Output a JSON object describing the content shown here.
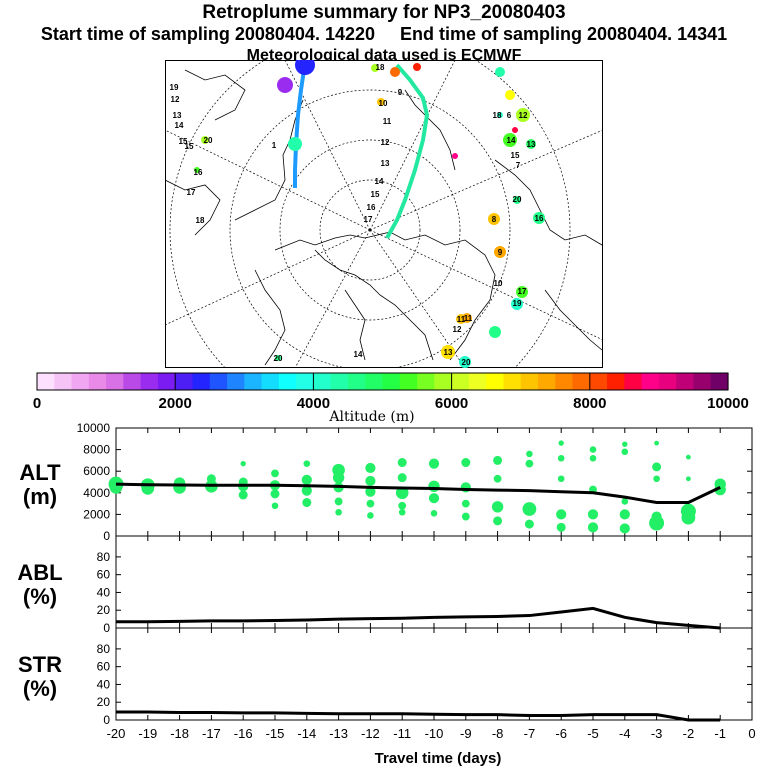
{
  "header": {
    "title": "Retroplume summary for NP3_20080403",
    "start_label": "Start time of sampling 20080404. 14220",
    "end_label": "End time of sampling 20080404. 14341",
    "met_label": "Meteorological data used is ECMWF"
  },
  "colors": {
    "trajectory_west": "#1e9bff",
    "trajectory_east": "#22e8a0",
    "cluster_green": "#22ee66",
    "axis": "#000000"
  },
  "colorbar": {
    "label": "Altitude (m)",
    "ticks": [
      "0",
      "2000",
      "4000",
      "6000",
      "8000",
      "10000"
    ],
    "min": 0,
    "max": 10000,
    "colors": [
      "#fde0fd",
      "#f6c3f6",
      "#f0a6f0",
      "#e98ae9",
      "#d870e6",
      "#b94ae8",
      "#9a2cf0",
      "#7a1cf2",
      "#4e1ff5",
      "#2424ff",
      "#1e55ff",
      "#1e84ff",
      "#1ab4ff",
      "#14dcff",
      "#10ffff",
      "#22ffe6",
      "#22ffcc",
      "#22ffaa",
      "#22ff88",
      "#22ff66",
      "#22ff44",
      "#44ff22",
      "#77ff22",
      "#aaff22",
      "#ccff22",
      "#eeff22",
      "#ffff00",
      "#ffe000",
      "#ffc400",
      "#ffa800",
      "#ff8800",
      "#ff6a00",
      "#ff4800",
      "#ff2000",
      "#ff0044",
      "#ff0088",
      "#e8007f",
      "#c00077",
      "#98006e",
      "#700068"
    ]
  },
  "map_labels": {
    "west_days": [
      "12",
      "13",
      "14",
      "15",
      "15",
      "16",
      "17",
      "18",
      "19",
      "20",
      "1"
    ],
    "east_track_days": [
      "9",
      "10",
      "11",
      "12",
      "13",
      "14",
      "15",
      "16",
      "17",
      "18"
    ],
    "east_cluster_days": [
      "6",
      "7",
      "8",
      "9",
      "10",
      "11",
      "12",
      "13",
      "14",
      "15",
      "16",
      "17",
      "18",
      "19",
      "20"
    ],
    "south_days": [
      "11",
      "12",
      "13",
      "14",
      "20",
      "20"
    ]
  },
  "chart_data": [
    {
      "type": "scatter",
      "panel_label": "ALT\n(m)",
      "ylabel_line1": "ALT",
      "ylabel_line2": "(m)",
      "xlabel": "Travel time (days)",
      "xlim": [
        -20,
        0
      ],
      "ylim": [
        0,
        10000
      ],
      "yticks": [
        "0",
        "2000",
        "4000",
        "6000",
        "8000",
        "10000"
      ],
      "mean_line": {
        "x": [
          -20,
          -19,
          -18,
          -17,
          -16,
          -15,
          -14,
          -13,
          -12,
          -11,
          -10,
          -9,
          -8,
          -7,
          -6,
          -5,
          -4,
          -3,
          -2,
          -1
        ],
        "y": [
          4800,
          4750,
          4720,
          4700,
          4700,
          4700,
          4650,
          4600,
          4500,
          4450,
          4400,
          4300,
          4250,
          4200,
          4100,
          4000,
          3600,
          3100,
          3100,
          4500
        ]
      },
      "clusters": [
        {
          "day": -20,
          "alt": 4800,
          "mass": 1.0
        },
        {
          "day": -20,
          "alt": 4500,
          "mass": 0.8
        },
        {
          "day": -19,
          "alt": 4700,
          "mass": 0.9
        },
        {
          "day": -19,
          "alt": 4400,
          "mass": 0.8
        },
        {
          "day": -18,
          "alt": 4900,
          "mass": 0.7
        },
        {
          "day": -18,
          "alt": 4500,
          "mass": 0.8
        },
        {
          "day": -17,
          "alt": 5300,
          "mass": 0.5
        },
        {
          "day": -17,
          "alt": 4600,
          "mass": 0.8
        },
        {
          "day": -16,
          "alt": 6700,
          "mass": 0.2
        },
        {
          "day": -16,
          "alt": 5000,
          "mass": 0.5
        },
        {
          "day": -16,
          "alt": 4600,
          "mass": 0.6
        },
        {
          "day": -16,
          "alt": 3800,
          "mass": 0.5
        },
        {
          "day": -15,
          "alt": 5800,
          "mass": 0.4
        },
        {
          "day": -15,
          "alt": 4700,
          "mass": 0.6
        },
        {
          "day": -15,
          "alt": 3900,
          "mass": 0.5
        },
        {
          "day": -15,
          "alt": 2800,
          "mass": 0.3
        },
        {
          "day": -14,
          "alt": 6700,
          "mass": 0.3
        },
        {
          "day": -14,
          "alt": 5200,
          "mass": 0.6
        },
        {
          "day": -14,
          "alt": 4200,
          "mass": 0.6
        },
        {
          "day": -14,
          "alt": 3100,
          "mass": 0.5
        },
        {
          "day": -13,
          "alt": 6100,
          "mass": 0.8
        },
        {
          "day": -13,
          "alt": 5400,
          "mass": 0.7
        },
        {
          "day": -13,
          "alt": 4500,
          "mass": 0.6
        },
        {
          "day": -13,
          "alt": 3200,
          "mass": 0.4
        },
        {
          "day": -13,
          "alt": 2200,
          "mass": 0.3
        },
        {
          "day": -12,
          "alt": 6300,
          "mass": 0.6
        },
        {
          "day": -12,
          "alt": 5100,
          "mass": 0.6
        },
        {
          "day": -12,
          "alt": 4100,
          "mass": 0.6
        },
        {
          "day": -12,
          "alt": 3000,
          "mass": 0.4
        },
        {
          "day": -12,
          "alt": 1900,
          "mass": 0.3
        },
        {
          "day": -11,
          "alt": 6800,
          "mass": 0.5
        },
        {
          "day": -11,
          "alt": 5400,
          "mass": 0.5
        },
        {
          "day": -11,
          "alt": 4000,
          "mass": 0.8
        },
        {
          "day": -11,
          "alt": 2800,
          "mass": 0.4
        },
        {
          "day": -11,
          "alt": 2200,
          "mass": 0.3
        },
        {
          "day": -10,
          "alt": 6700,
          "mass": 0.6
        },
        {
          "day": -10,
          "alt": 4600,
          "mass": 0.7
        },
        {
          "day": -10,
          "alt": 3500,
          "mass": 0.6
        },
        {
          "day": -10,
          "alt": 2100,
          "mass": 0.3
        },
        {
          "day": -9,
          "alt": 6800,
          "mass": 0.5
        },
        {
          "day": -9,
          "alt": 4500,
          "mass": 0.6
        },
        {
          "day": -9,
          "alt": 3000,
          "mass": 0.4
        },
        {
          "day": -9,
          "alt": 1800,
          "mass": 0.4
        },
        {
          "day": -8,
          "alt": 7000,
          "mass": 0.5
        },
        {
          "day": -8,
          "alt": 5300,
          "mass": 0.4
        },
        {
          "day": -8,
          "alt": 2700,
          "mass": 0.7
        },
        {
          "day": -8,
          "alt": 1400,
          "mass": 0.5
        },
        {
          "day": -7,
          "alt": 7600,
          "mass": 0.3
        },
        {
          "day": -7,
          "alt": 6700,
          "mass": 0.4
        },
        {
          "day": -7,
          "alt": 2500,
          "mass": 0.9
        },
        {
          "day": -7,
          "alt": 1100,
          "mass": 0.5
        },
        {
          "day": -6,
          "alt": 8600,
          "mass": 0.2
        },
        {
          "day": -6,
          "alt": 7200,
          "mass": 0.3
        },
        {
          "day": -6,
          "alt": 5300,
          "mass": 0.3
        },
        {
          "day": -6,
          "alt": 2000,
          "mass": 0.6
        },
        {
          "day": -6,
          "alt": 800,
          "mass": 0.5
        },
        {
          "day": -5,
          "alt": 8000,
          "mass": 0.3
        },
        {
          "day": -5,
          "alt": 7200,
          "mass": 0.3
        },
        {
          "day": -5,
          "alt": 4300,
          "mass": 0.4
        },
        {
          "day": -5,
          "alt": 2000,
          "mass": 0.6
        },
        {
          "day": -5,
          "alt": 800,
          "mass": 0.6
        },
        {
          "day": -4,
          "alt": 8500,
          "mass": 0.2
        },
        {
          "day": -4,
          "alt": 7800,
          "mass": 0.3
        },
        {
          "day": -4,
          "alt": 3200,
          "mass": 0.3
        },
        {
          "day": -4,
          "alt": 2000,
          "mass": 0.6
        },
        {
          "day": -4,
          "alt": 700,
          "mass": 0.6
        },
        {
          "day": -3,
          "alt": 8600,
          "mass": 0.15
        },
        {
          "day": -3,
          "alt": 6400,
          "mass": 0.5
        },
        {
          "day": -3,
          "alt": 5300,
          "mass": 0.3
        },
        {
          "day": -3,
          "alt": 1800,
          "mass": 0.6
        },
        {
          "day": -3,
          "alt": 1200,
          "mass": 1.0
        },
        {
          "day": -2,
          "alt": 7300,
          "mass": 0.15
        },
        {
          "day": -2,
          "alt": 5300,
          "mass": 0.15
        },
        {
          "day": -2,
          "alt": 2300,
          "mass": 1.0
        },
        {
          "day": -2,
          "alt": 1700,
          "mass": 0.9
        },
        {
          "day": -1,
          "alt": 4800,
          "mass": 0.7
        },
        {
          "day": -1,
          "alt": 4300,
          "mass": 0.7
        }
      ]
    },
    {
      "type": "line",
      "ylabel_line1": "ABL",
      "ylabel_line2": "(%)",
      "xlim": [
        -20,
        0
      ],
      "ylim": [
        0,
        90
      ],
      "yticks": [
        "0",
        "20",
        "40",
        "60",
        "80"
      ],
      "x": [
        -20,
        -19,
        -18,
        -17,
        -16,
        -15,
        -14,
        -13,
        -12,
        -11,
        -10,
        -9,
        -8,
        -7,
        -6,
        -5,
        -4,
        -3,
        -2,
        -1
      ],
      "y": [
        7,
        7,
        7.5,
        8,
        8,
        8.5,
        9,
        10,
        10.5,
        11,
        12,
        12.5,
        13,
        14,
        18,
        22,
        12,
        6,
        3,
        0
      ]
    },
    {
      "type": "line",
      "ylabel_line1": "STR",
      "ylabel_line2": "(%)",
      "xlabel": "Travel time (days)",
      "xlim": [
        -20,
        0
      ],
      "ylim": [
        0,
        90
      ],
      "yticks": [
        "0",
        "20",
        "40",
        "60",
        "80"
      ],
      "xticks": [
        "-20",
        "-19",
        "-18",
        "-17",
        "-16",
        "-15",
        "-14",
        "-13",
        "-12",
        "-11",
        "-10",
        "-9",
        "-8",
        "-7",
        "-6",
        "-5",
        "-4",
        "-3",
        "-2",
        "-1",
        "0"
      ],
      "x": [
        -20,
        -19,
        -18,
        -17,
        -16,
        -15,
        -14,
        -13,
        -12,
        -11,
        -10,
        -9,
        -8,
        -7,
        -6,
        -5,
        -4,
        -3,
        -2,
        -1
      ],
      "y": [
        9,
        9,
        8.5,
        8.5,
        8,
        8,
        7.5,
        7,
        7,
        7,
        6.5,
        6,
        6,
        5,
        5,
        6,
        6,
        6,
        0,
        0
      ]
    }
  ]
}
